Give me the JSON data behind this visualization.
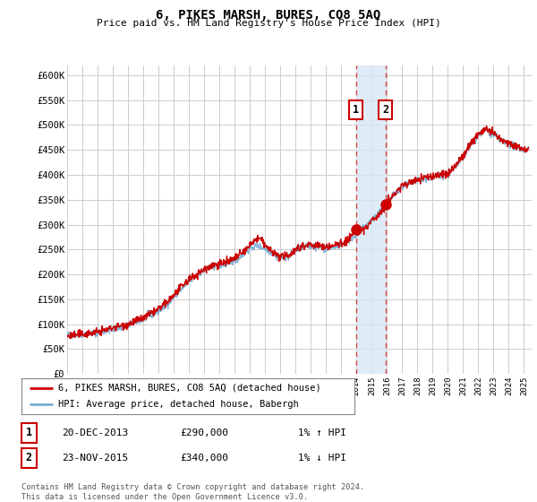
{
  "title": "6, PIKES MARSH, BURES, CO8 5AQ",
  "subtitle": "Price paid vs. HM Land Registry's House Price Index (HPI)",
  "ylabel_ticks": [
    "£0",
    "£50K",
    "£100K",
    "£150K",
    "£200K",
    "£250K",
    "£300K",
    "£350K",
    "£400K",
    "£450K",
    "£500K",
    "£550K",
    "£600K"
  ],
  "ylim": [
    0,
    620000
  ],
  "xlim_start": 1995.0,
  "xlim_end": 2025.5,
  "xtick_years": [
    1995,
    1996,
    1997,
    1998,
    1999,
    2000,
    2001,
    2002,
    2003,
    2004,
    2005,
    2006,
    2007,
    2008,
    2009,
    2010,
    2011,
    2012,
    2013,
    2014,
    2015,
    2016,
    2017,
    2018,
    2019,
    2020,
    2021,
    2022,
    2023,
    2024,
    2025
  ],
  "hpi_color": "#7bafd4",
  "price_color": "#cc0000",
  "dot_color": "#cc0000",
  "marker1_x": 2013.97,
  "marker1_y": 290000,
  "marker2_x": 2015.9,
  "marker2_y": 340000,
  "shade_x1": 2013.97,
  "shade_x2": 2015.9,
  "vline_color": "#dd4444",
  "shade_color": "#d8e8f5",
  "legend_line1": "6, PIKES MARSH, BURES, CO8 5AQ (detached house)",
  "legend_line2": "HPI: Average price, detached house, Babergh",
  "table_row1": [
    "1",
    "20-DEC-2013",
    "£290,000",
    "1% ↑ HPI"
  ],
  "table_row2": [
    "2",
    "23-NOV-2015",
    "£340,000",
    "1% ↓ HPI"
  ],
  "footnote": "Contains HM Land Registry data © Crown copyright and database right 2024.\nThis data is licensed under the Open Government Licence v3.0.",
  "bg_color": "#ffffff",
  "grid_color": "#cccccc"
}
